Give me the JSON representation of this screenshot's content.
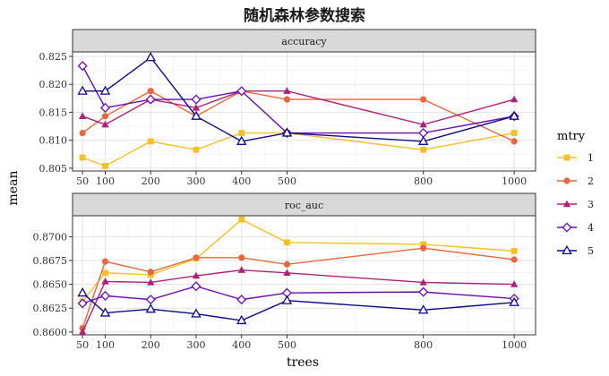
{
  "chart_data": {
    "type": "line",
    "title": "随机森林参数搜索",
    "xlabel": "trees",
    "ylabel": "mean",
    "x": [
      50,
      100,
      200,
      300,
      400,
      500,
      800,
      1000
    ],
    "xticks": [
      "50",
      "100",
      "200",
      "300",
      "400",
      "500",
      "800",
      "1000"
    ],
    "legend": {
      "title": "mtry",
      "position": "right",
      "labels": [
        "1",
        "2",
        "3",
        "4",
        "5"
      ]
    },
    "series_style": [
      {
        "mtry": "1",
        "color": "#F5C024",
        "shape": "square"
      },
      {
        "mtry": "2",
        "color": "#E8673C",
        "shape": "circle"
      },
      {
        "mtry": "3",
        "color": "#B0207A",
        "shape": "triangle"
      },
      {
        "mtry": "4",
        "color": "#6A0DAD",
        "shape": "diamond-open"
      },
      {
        "mtry": "5",
        "color": "#0D0887",
        "shape": "triangle-open"
      }
    ],
    "panels": [
      {
        "label": "accuracy",
        "ylim": [
          0.8045,
          0.8258
        ],
        "yticks": [
          0.805,
          0.81,
          0.815,
          0.82,
          0.825
        ],
        "ytick_labels": [
          "0.805",
          "0.810",
          "0.815",
          "0.820",
          "0.825"
        ],
        "series": [
          {
            "name": "1",
            "values": [
              0.8069,
              0.8054,
              0.8098,
              0.8083,
              0.8113,
              0.8113,
              0.8083,
              0.8113
            ]
          },
          {
            "name": "2",
            "values": [
              0.8113,
              0.8143,
              0.8188,
              0.8143,
              0.8188,
              0.8173,
              0.8173,
              0.8098
            ]
          },
          {
            "name": "3",
            "values": [
              0.8143,
              0.8128,
              0.8173,
              0.8158,
              0.8188,
              0.8188,
              0.8128,
              0.8173
            ]
          },
          {
            "name": "4",
            "values": [
              0.8233,
              0.8158,
              0.8173,
              0.8173,
              0.8188,
              0.8113,
              0.8113,
              0.8143
            ]
          },
          {
            "name": "5",
            "values": [
              0.8188,
              0.8188,
              0.8248,
              0.8143,
              0.8098,
              0.8113,
              0.8098,
              0.8143
            ]
          }
        ]
      },
      {
        "label": "roc_auc",
        "ylim": [
          0.8597,
          0.8722
        ],
        "yticks": [
          0.86,
          0.8625,
          0.865,
          0.8675,
          0.87
        ],
        "ytick_labels": [
          "0.8600",
          "0.8625",
          "0.8650",
          "0.8675",
          "0.8700"
        ],
        "series": [
          {
            "name": "1",
            "values": [
              0.8632,
              0.8662,
              0.866,
              0.8677,
              0.8718,
              0.8694,
              0.8692,
              0.8685
            ]
          },
          {
            "name": "2",
            "values": [
              0.8604,
              0.8674,
              0.8663,
              0.8678,
              0.8678,
              0.8671,
              0.8688,
              0.8676
            ]
          },
          {
            "name": "3",
            "values": [
              0.86,
              0.8653,
              0.8652,
              0.8659,
              0.8665,
              0.8662,
              0.8652,
              0.865
            ]
          },
          {
            "name": "4",
            "values": [
              0.863,
              0.8638,
              0.8634,
              0.8648,
              0.8634,
              0.8641,
              0.8642,
              0.8635
            ]
          },
          {
            "name": "5",
            "values": [
              0.8641,
              0.862,
              0.8624,
              0.8619,
              0.8612,
              0.8633,
              0.8623,
              0.8631
            ]
          }
        ]
      }
    ]
  }
}
